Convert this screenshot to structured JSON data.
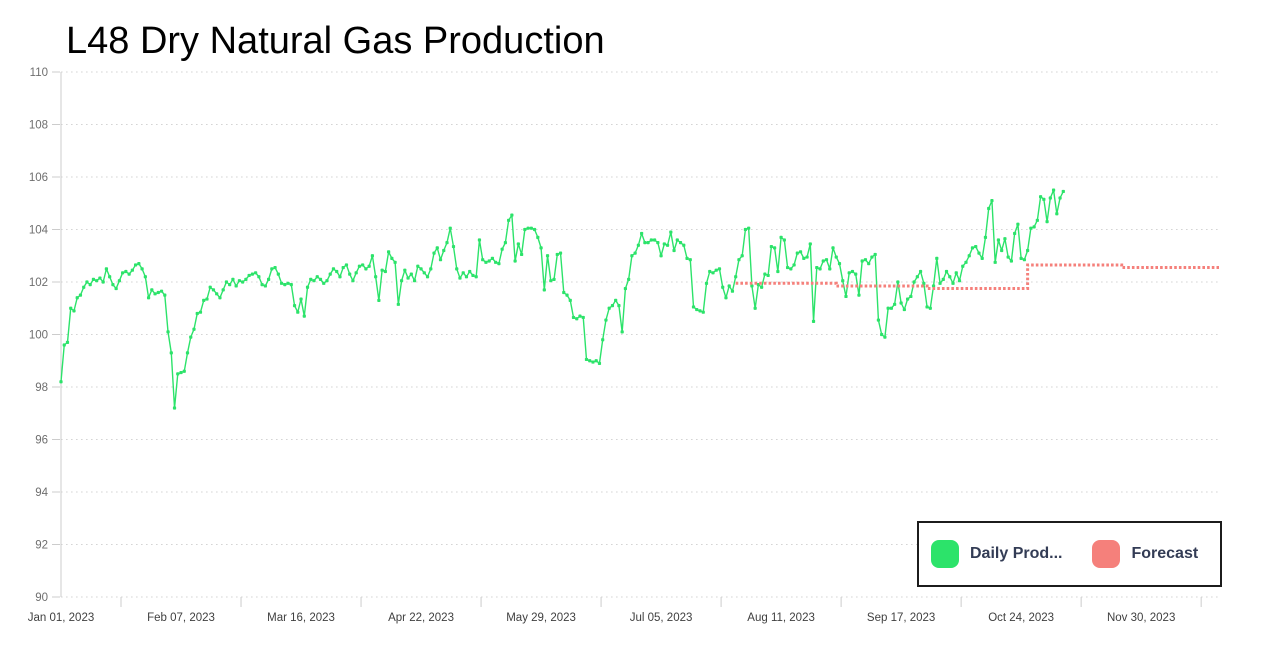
{
  "page": {
    "background": "#ffffff"
  },
  "header": {
    "title": "L48 Dry Natural Gas Production"
  },
  "legend": {
    "items": [
      {
        "label": "Daily Prod...",
        "color": "#2ce36a"
      },
      {
        "label": "Forecast",
        "color": "#f5807b"
      }
    ],
    "border_color": "#1c1c1c",
    "text_color": "#333c55"
  },
  "chart_data": {
    "type": "line",
    "title": "L48 Dry Natural Gas Production",
    "xlabel": "",
    "ylabel": "",
    "ylim": [
      90,
      110
    ],
    "y_ticks": [
      90,
      92,
      94,
      96,
      98,
      100,
      102,
      104,
      106,
      108,
      110
    ],
    "grid": {
      "show": true,
      "style": "dotted",
      "color": "#d4d4d4",
      "axis_line_color": "#cccccc",
      "y_label_color": "#6e6e6e",
      "x_label_color": "#3f3f3f"
    },
    "legend_position": "bottom-right",
    "x_axis": {
      "tick_labels": [
        "Jan 01, 2023",
        "Feb 07, 2023",
        "Mar 16, 2023",
        "Apr 22, 2023",
        "May 29, 2023",
        "Jul 05, 2023",
        "Aug 11, 2023",
        "Sep 17, 2023",
        "Oct 24, 2023",
        "Nov 30, 2023"
      ],
      "tick_days": [
        0,
        37,
        74,
        111,
        148,
        185,
        222,
        259,
        296,
        333
      ],
      "total_days": 357
    },
    "series": [
      {
        "name": "Daily Prod...",
        "type": "line",
        "color": "#2ce36a",
        "marker": "square",
        "start_day": 0,
        "values": [
          98.2,
          99.6,
          99.7,
          101.0,
          100.9,
          101.4,
          101.5,
          101.8,
          102.0,
          101.9,
          102.1,
          102.05,
          102.15,
          102.0,
          102.5,
          102.2,
          101.9,
          101.75,
          102.05,
          102.35,
          102.4,
          102.3,
          102.45,
          102.65,
          102.7,
          102.5,
          102.2,
          101.4,
          101.7,
          101.55,
          101.6,
          101.65,
          101.5,
          100.1,
          99.3,
          97.2,
          98.5,
          98.55,
          98.6,
          99.3,
          99.9,
          100.2,
          100.8,
          100.85,
          101.3,
          101.35,
          101.8,
          101.7,
          101.55,
          101.4,
          101.7,
          102.0,
          101.9,
          102.1,
          101.85,
          102.05,
          102.0,
          102.1,
          102.25,
          102.3,
          102.35,
          102.2,
          101.9,
          101.85,
          102.1,
          102.5,
          102.55,
          102.3,
          101.95,
          101.9,
          101.95,
          101.9,
          101.1,
          100.85,
          101.35,
          100.7,
          101.8,
          102.1,
          102.05,
          102.2,
          102.1,
          101.95,
          102.05,
          102.3,
          102.5,
          102.4,
          102.2,
          102.55,
          102.65,
          102.3,
          102.05,
          102.35,
          102.6,
          102.65,
          102.5,
          102.6,
          103.0,
          102.2,
          101.3,
          102.45,
          102.4,
          103.15,
          102.9,
          102.75,
          101.15,
          102.05,
          102.45,
          102.15,
          102.3,
          102.05,
          102.6,
          102.5,
          102.35,
          102.2,
          102.5,
          103.1,
          103.3,
          102.85,
          103.2,
          103.5,
          104.05,
          103.35,
          102.5,
          102.15,
          102.35,
          102.2,
          102.4,
          102.25,
          102.2,
          103.6,
          102.85,
          102.75,
          102.8,
          102.9,
          102.75,
          102.7,
          103.25,
          103.5,
          104.35,
          104.55,
          102.8,
          103.45,
          103.05,
          104.0,
          104.05,
          104.05,
          104.0,
          103.7,
          103.3,
          101.7,
          103.0,
          102.05,
          102.1,
          103.05,
          103.1,
          101.6,
          101.5,
          101.3,
          100.65,
          100.6,
          100.7,
          100.65,
          99.05,
          99.0,
          98.95,
          99.0,
          98.9,
          99.8,
          100.55,
          101.0,
          101.1,
          101.3,
          101.1,
          100.1,
          101.75,
          102.1,
          103.0,
          103.1,
          103.4,
          103.85,
          103.5,
          103.5,
          103.6,
          103.6,
          103.5,
          103.0,
          103.45,
          103.4,
          103.9,
          103.2,
          103.6,
          103.5,
          103.4,
          102.9,
          102.85,
          101.05,
          100.95,
          100.9,
          100.85,
          101.95,
          102.4,
          102.35,
          102.45,
          102.5,
          101.8,
          101.4,
          101.85,
          101.65,
          102.2,
          102.85,
          103.0,
          104.0,
          104.05,
          101.85,
          101.0,
          101.9,
          101.8,
          102.3,
          102.25,
          103.35,
          103.3,
          102.4,
          103.7,
          103.6,
          102.55,
          102.5,
          102.65,
          103.1,
          103.15,
          102.9,
          102.95,
          103.45,
          100.5,
          102.55,
          102.5,
          102.8,
          102.85,
          102.5,
          103.3,
          102.95,
          102.7,
          102.05,
          101.45,
          102.35,
          102.4,
          102.3,
          101.5,
          102.8,
          102.85,
          102.7,
          102.95,
          103.05,
          100.55,
          100.0,
          99.9,
          101.0,
          101.0,
          101.15,
          102.0,
          101.2,
          100.95,
          101.35,
          101.45,
          102.0,
          102.2,
          102.4,
          101.95,
          101.05,
          101.0,
          101.85,
          102.9,
          101.95,
          102.1,
          102.4,
          102.2,
          101.95,
          102.35,
          102.05,
          102.6,
          102.75,
          103.0,
          103.3,
          103.35,
          103.1,
          102.9,
          103.7,
          104.8,
          105.1,
          102.75,
          103.6,
          103.2,
          103.65,
          102.95,
          102.8,
          103.85,
          104.2,
          102.9,
          102.85,
          103.2,
          104.05,
          104.1,
          104.35,
          105.25,
          105.15,
          104.3,
          105.2,
          105.5,
          104.6,
          105.2,
          105.45
        ]
      },
      {
        "name": "Forecast",
        "type": "line",
        "color": "#f5807b",
        "line_style": "dashed",
        "segments": [
          [
            208,
            239,
            101.95
          ],
          [
            239,
            267,
            101.85
          ],
          [
            267,
            298,
            101.75
          ],
          [
            298,
            327,
            102.65
          ],
          [
            327,
            357,
            102.55
          ]
        ]
      }
    ]
  }
}
